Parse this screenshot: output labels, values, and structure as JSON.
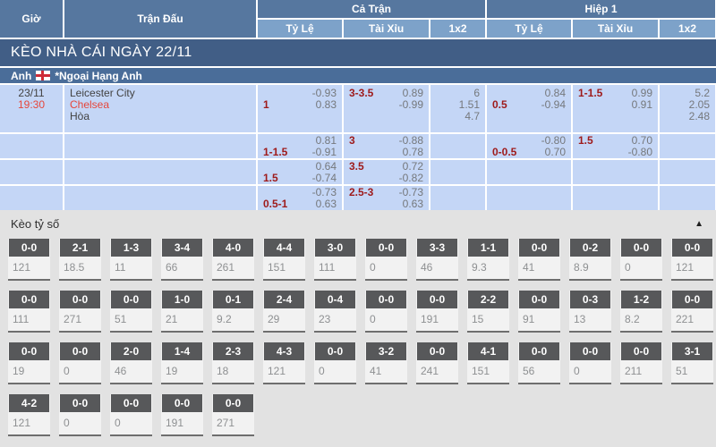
{
  "table": {
    "header": {
      "time": "Giờ",
      "match": "Trận Đấu",
      "full_match": "Cả Trận",
      "first_half": "Hiệp 1",
      "sub": {
        "odds": "Tỷ Lệ",
        "over_under": "Tài Xỉu",
        "one_x_two": "1x2"
      }
    },
    "banner": "KÈO NHÀ CÁI NGÀY 22/11",
    "league": {
      "country": "Anh",
      "flag_icon": "england-flag-icon",
      "name": "*Ngoại Hạng Anh"
    },
    "match": {
      "date": "23/11",
      "time": "19:30",
      "teams": [
        {
          "name": "Leicester City",
          "color": "dark"
        },
        {
          "name": "Chelsea",
          "color": "red"
        },
        {
          "name": "Hòa",
          "color": "dark"
        }
      ]
    },
    "odds_rows": [
      {
        "lines": 3,
        "ft_handicap": {
          "line": "1",
          "odds": [
            "-0.93",
            "0.83"
          ]
        },
        "ft_over_under": {
          "line": "3-3.5",
          "odds": [
            "0.89",
            "-0.99"
          ]
        },
        "ft_1x2": [
          "6",
          "1.51",
          "4.7"
        ],
        "h1_handicap": {
          "line": "0.5",
          "odds": [
            "0.84",
            "-0.94"
          ]
        },
        "h1_over_under": {
          "line": "1-1.5",
          "odds": [
            "0.99",
            "0.91"
          ]
        },
        "h1_1x2": [
          "5.2",
          "2.05",
          "2.48"
        ]
      },
      {
        "lines": 2,
        "ft_handicap": {
          "line": "1-1.5",
          "odds": [
            "0.81",
            "-0.91"
          ]
        },
        "ft_over_under": {
          "line": "3",
          "odds": [
            "-0.88",
            "0.78"
          ]
        },
        "ft_1x2": [],
        "h1_handicap": {
          "line": "0-0.5",
          "odds": [
            "-0.80",
            "0.70"
          ]
        },
        "h1_over_under": {
          "line": "1.5",
          "odds": [
            "0.70",
            "-0.80"
          ]
        },
        "h1_1x2": []
      },
      {
        "lines": 2,
        "ft_handicap": {
          "line": "1.5",
          "odds": [
            "0.64",
            "-0.74"
          ]
        },
        "ft_over_under": {
          "line": "3.5",
          "odds": [
            "0.72",
            "-0.82"
          ]
        },
        "ft_1x2": [],
        "h1_handicap": null,
        "h1_over_under": null,
        "h1_1x2": []
      },
      {
        "lines": 2,
        "ft_handicap": {
          "line": "0.5-1",
          "odds": [
            "-0.73",
            "0.63"
          ]
        },
        "ft_over_under": {
          "line": "2.5-3",
          "odds": [
            "-0.73",
            "0.63"
          ]
        },
        "ft_1x2": [],
        "h1_handicap": null,
        "h1_over_under": null,
        "h1_1x2": []
      }
    ]
  },
  "correct_score": {
    "title": "Kèo tỷ số",
    "collapse_icon": "▲",
    "rows": [
      [
        {
          "score": "0-0",
          "value": "121"
        },
        {
          "score": "2-1",
          "value": "18.5"
        },
        {
          "score": "1-3",
          "value": "11"
        },
        {
          "score": "3-4",
          "value": "66"
        },
        {
          "score": "4-0",
          "value": "261"
        },
        {
          "score": "4-4",
          "value": "151"
        },
        {
          "score": "3-0",
          "value": "111"
        },
        {
          "score": "0-0",
          "value": "0"
        },
        {
          "score": "3-3",
          "value": "46"
        },
        {
          "score": "1-1",
          "value": "9.3"
        },
        {
          "score": "0-0",
          "value": "41"
        },
        {
          "score": "0-2",
          "value": "8.9"
        },
        {
          "score": "0-0",
          "value": "0"
        },
        {
          "score": "0-0",
          "value": "121"
        }
      ],
      [
        {
          "score": "0-0",
          "value": "111"
        },
        {
          "score": "0-0",
          "value": "271"
        },
        {
          "score": "0-0",
          "value": "51"
        },
        {
          "score": "1-0",
          "value": "21"
        },
        {
          "score": "0-1",
          "value": "9.2"
        },
        {
          "score": "2-4",
          "value": "29"
        },
        {
          "score": "0-4",
          "value": "23"
        },
        {
          "score": "0-0",
          "value": "0"
        },
        {
          "score": "0-0",
          "value": "191"
        },
        {
          "score": "2-2",
          "value": "15"
        },
        {
          "score": "0-0",
          "value": "91"
        },
        {
          "score": "0-3",
          "value": "13"
        },
        {
          "score": "1-2",
          "value": "8.2"
        },
        {
          "score": "0-0",
          "value": "221"
        }
      ],
      [
        {
          "score": "0-0",
          "value": "19"
        },
        {
          "score": "0-0",
          "value": "0"
        },
        {
          "score": "2-0",
          "value": "46"
        },
        {
          "score": "1-4",
          "value": "19"
        },
        {
          "score": "2-3",
          "value": "18"
        },
        {
          "score": "4-3",
          "value": "121"
        },
        {
          "score": "0-0",
          "value": "0"
        },
        {
          "score": "3-2",
          "value": "41"
        },
        {
          "score": "0-0",
          "value": "241"
        },
        {
          "score": "4-1",
          "value": "151"
        },
        {
          "score": "0-0",
          "value": "56"
        },
        {
          "score": "0-0",
          "value": "0"
        },
        {
          "score": "0-0",
          "value": "211"
        },
        {
          "score": "3-1",
          "value": "51"
        }
      ],
      [
        {
          "score": "4-2",
          "value": "121"
        },
        {
          "score": "0-0",
          "value": "0"
        },
        {
          "score": "0-0",
          "value": "0"
        },
        {
          "score": "0-0",
          "value": "191"
        },
        {
          "score": "0-0",
          "value": "271"
        }
      ]
    ]
  },
  "colors": {
    "header_blue": "#56779f",
    "subheader_blue": "#7da2c9",
    "banner_blue": "#415e86",
    "league_blue": "#4a6d99",
    "row_blue": "#c4d6f6",
    "handicap_red": "#9e1a1a",
    "odds_grey": "#75787c",
    "accent_red": "#e6463b",
    "score_box_grey": "#57585a",
    "section_grey": "#e2e2e2"
  }
}
